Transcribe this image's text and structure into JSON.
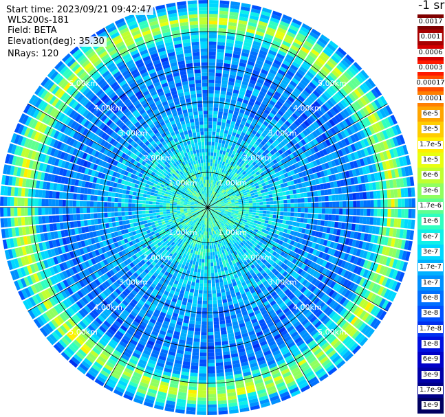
{
  "info": {
    "start_time": "Start time: 2023/09/21 09:42:47",
    "instrument": "WLS200s-181",
    "field": "Field: BETA",
    "elevation": "Elevation(deg): 35.30",
    "nrays": "NRays: 120"
  },
  "colorbar": {
    "unit_label": "-1 sr",
    "levels": [
      {
        "label": "0.0017",
        "color": "#7f0000"
      },
      {
        "label": "0.001",
        "color": "#a80000"
      },
      {
        "label": "0.0006",
        "color": "#d40000"
      },
      {
        "label": "0.0003",
        "color": "#ff1a00"
      },
      {
        "label": "0.00017",
        "color": "#ff4d00"
      },
      {
        "label": "0.0001",
        "color": "#ff7f00"
      },
      {
        "label": "6e-5",
        "color": "#ffa500"
      },
      {
        "label": "3e-5",
        "color": "#ffcc00"
      },
      {
        "label": "1.7e-5",
        "color": "#ffee00"
      },
      {
        "label": "1e-5",
        "color": "#e8ff10"
      },
      {
        "label": "6e-6",
        "color": "#c0ff30"
      },
      {
        "label": "3e-6",
        "color": "#90ff60"
      },
      {
        "label": "1.7e-6",
        "color": "#60ff90"
      },
      {
        "label": "1e-6",
        "color": "#30ffc0"
      },
      {
        "label": "6e-7",
        "color": "#10f0e8"
      },
      {
        "label": "3e-7",
        "color": "#00d8ff"
      },
      {
        "label": "1.7e-7",
        "color": "#00b0ff"
      },
      {
        "label": "1e-7",
        "color": "#0090ff"
      },
      {
        "label": "6e-8",
        "color": "#0070ff"
      },
      {
        "label": "3e-8",
        "color": "#0050ff"
      },
      {
        "label": "1.7e-8",
        "color": "#0030f0"
      },
      {
        "label": "1e-8",
        "color": "#0010e0"
      },
      {
        "label": "6e-9",
        "color": "#0000c8"
      },
      {
        "label": "3e-9",
        "color": "#0000a8"
      },
      {
        "label": "1.7e-9",
        "color": "#000088"
      },
      {
        "label": "1e-9",
        "color": "#000060"
      }
    ]
  },
  "chart_data": {
    "type": "heatmap",
    "projection": "polar PPI scan",
    "field": "BETA",
    "rays": 120,
    "max_range_km": 5.9,
    "range_ring_labels": [
      "1.00km",
      "2.00km",
      "3.00km",
      "4.00km",
      "5.00km"
    ],
    "range_ring_values_km": [
      1,
      2,
      3,
      4,
      5
    ],
    "radial_profile_log10_beta": [
      {
        "range_km": 0.2,
        "value": -6.0
      },
      {
        "range_km": 1.0,
        "value": -6.2
      },
      {
        "range_km": 2.0,
        "value": -6.6
      },
      {
        "range_km": 3.0,
        "value": -7.0
      },
      {
        "range_km": 4.0,
        "value": -7.2
      },
      {
        "range_km": 4.6,
        "value": -7.1
      },
      {
        "range_km": 5.3,
        "value": -5.2
      },
      {
        "range_km": 5.9,
        "value": -7.3
      }
    ],
    "colorscale_min": 1e-09,
    "colorscale_max": 0.0017,
    "grid": true
  }
}
